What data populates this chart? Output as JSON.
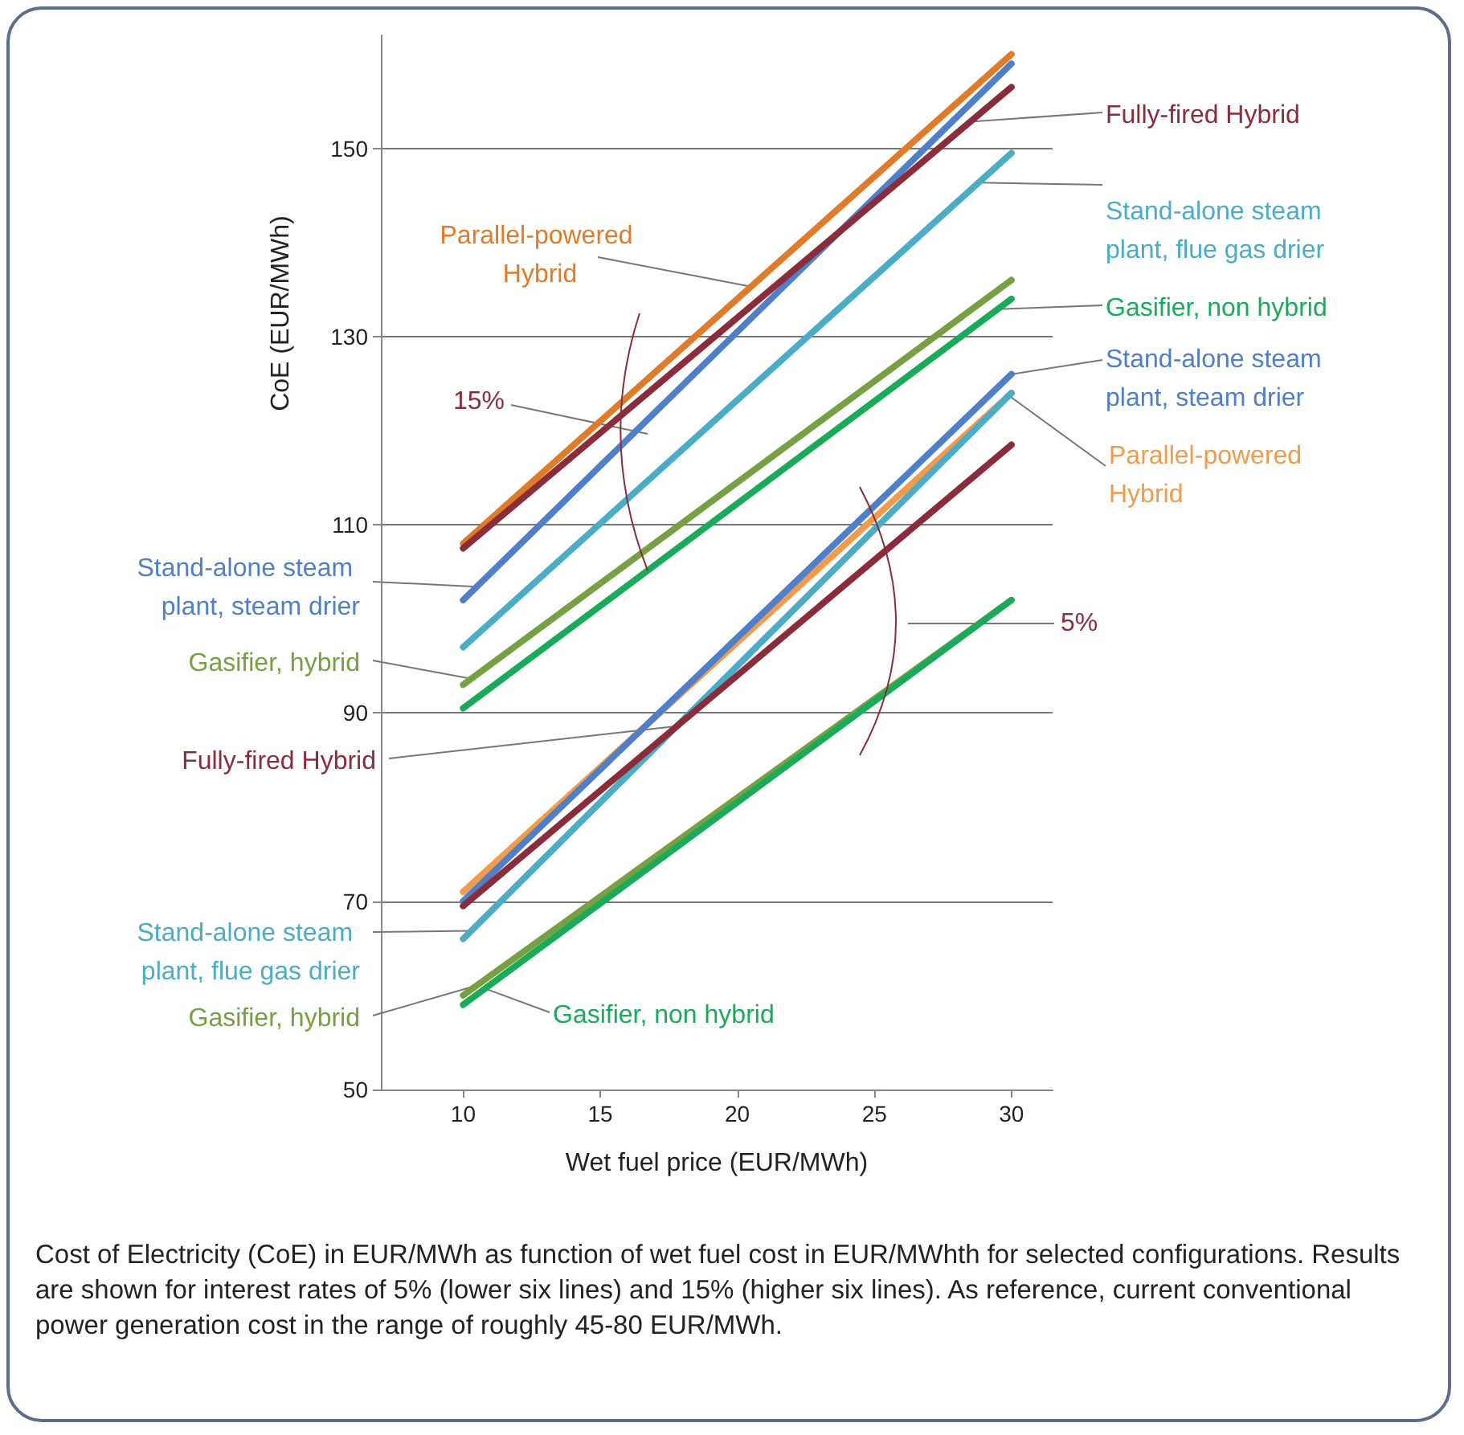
{
  "chart_data": {
    "type": "line",
    "xlabel": "Wet fuel price (EUR/MWh)",
    "ylabel": "CoE (EUR/MWh)",
    "x": [
      10,
      30
    ],
    "xlim": [
      7,
      31.5
    ],
    "xticks": [
      10,
      15,
      20,
      25,
      30
    ],
    "ylim": [
      50,
      162
    ],
    "yticks": [
      50,
      70,
      90,
      110,
      130,
      150
    ],
    "grid": "y",
    "legend": false,
    "marker": "none",
    "line_style": "solid",
    "series": [
      {
        "name": "Parallel-powered Hybrid",
        "color": "#e07b2a",
        "values": [
          108,
          160
        ]
      },
      {
        "name": "Stand-alone steam plant, steam drier",
        "color": "#4f7fc8",
        "values": [
          102,
          159
        ]
      },
      {
        "name": "Stand-alone steam plant, flue gas drier",
        "color": "#4bacc6",
        "values": [
          97,
          149.5
        ]
      },
      {
        "name": "Gasifier, hybrid",
        "color": "#77a043",
        "values": [
          93,
          136
        ]
      },
      {
        "name": "Gasifier, non hybrid",
        "color": "#1aab5a",
        "values": [
          90.5,
          134
        ]
      },
      {
        "name": "Fully-fired Hybrid",
        "color": "#8b2c3a",
        "values": [
          107.5,
          156.5
        ]
      },
      {
        "name": "Parallel-powered Hybrid",
        "color": "#f29b4c",
        "values": [
          71,
          124
        ]
      },
      {
        "name": "Stand-alone steam plant, steam drier",
        "color": "#4f7fc8",
        "values": [
          70,
          126
        ]
      },
      {
        "name": "Stand-alone steam plant, flue gas drier",
        "color": "#4bacc6",
        "values": [
          66,
          124
        ]
      },
      {
        "name": "Gasifier, hybrid",
        "color": "#77a043",
        "values": [
          60,
          102
        ]
      },
      {
        "name": "Gasifier, non hybrid",
        "color": "#1aab5a",
        "values": [
          59,
          102
        ]
      },
      {
        "name": "Fully-fired Hybrid",
        "color": "#8b2c3a",
        "values": [
          69.5,
          118.5
        ]
      }
    ],
    "annotations": [
      "15%",
      "5%",
      "Cost of Electricity (CoE) in EUR/MWh as function of wet fuel cost in EUR/MWhth for selected configurations. Results are shown for interest rates of 5% (lower six lines) and 15% (higher six lines). As reference, current conventional power generation cost in the range of roughly 45-80 EUR/MWh."
    ]
  }
}
